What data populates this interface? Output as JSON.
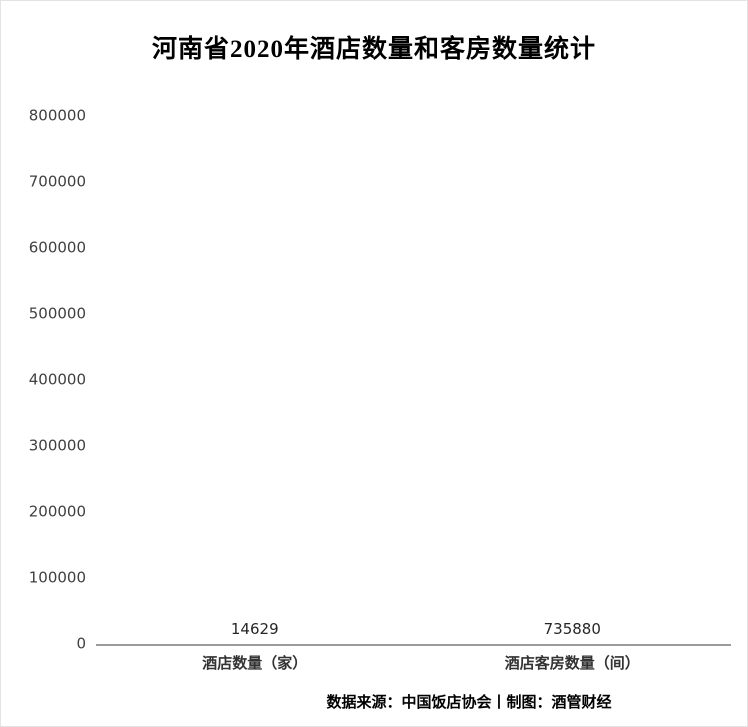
{
  "page": {
    "title": "河南省2020年酒店数量和客房数量统计",
    "footer": "数据来源：中国饭店协会丨制图：酒管财经"
  },
  "chart_data": {
    "type": "bar",
    "title": "河南省2020年酒店数量和客房数量统计",
    "categories": [
      "酒店数量（家）",
      "酒店客房数量（间）"
    ],
    "values": [
      14629,
      735880
    ],
    "data_labels": [
      "14629",
      "735880"
    ],
    "xlabel": "",
    "ylabel": "",
    "ylim": [
      0,
      800000
    ],
    "ytick_step": 100000,
    "ytick_labels": [
      "0",
      "100000",
      "200000",
      "300000",
      "400000",
      "500000",
      "600000",
      "700000",
      "800000"
    ],
    "grid": false,
    "legend": false,
    "colors": {
      "bar_hotels": "#c55a11",
      "bar_rooms_top": "#2f9fd8",
      "bar_rooms_bottom": "#0a5596",
      "axis_line": "#9b9b9b",
      "tick_text": "#404040",
      "title_text": "#000000"
    },
    "source_note": "数据来源：中国饭店协会丨制图：酒管财经"
  }
}
